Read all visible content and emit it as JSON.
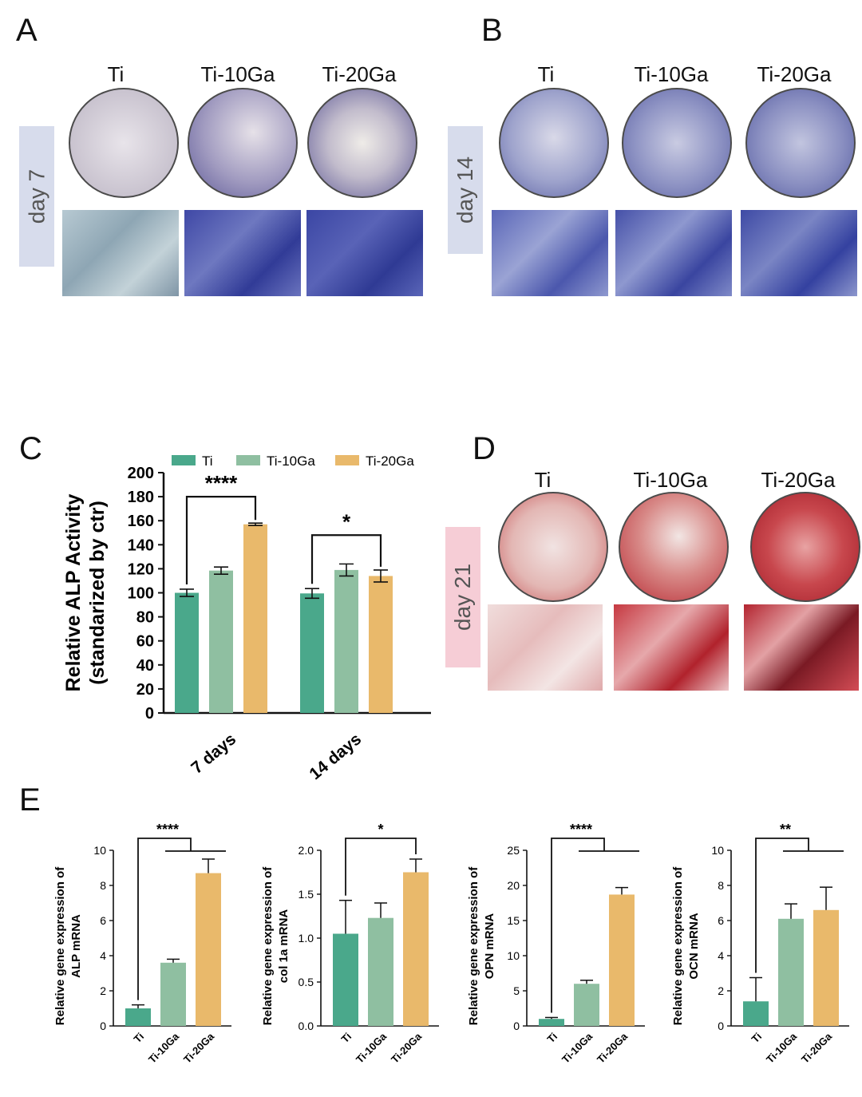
{
  "panels": {
    "A": {
      "letter": "A",
      "day": "day 7",
      "groups": [
        "Ti",
        "Ti-10Ga",
        "Ti-20Ga"
      ],
      "stain_color": "#4a4fa0"
    },
    "B": {
      "letter": "B",
      "day": "day 14",
      "groups": [
        "Ti",
        "Ti-10Ga",
        "Ti-20Ga"
      ],
      "stain_color": "#4a4fa0"
    },
    "C": {
      "letter": "C"
    },
    "D": {
      "letter": "D",
      "day": "day 21",
      "groups": [
        "Ti",
        "Ti-10Ga",
        "Ti-20Ga"
      ],
      "stain_color": "#c4323a"
    },
    "E": {
      "letter": "E"
    }
  },
  "colors": {
    "Ti": "#4aa88b",
    "Ti-10Ga": "#8fbfa1",
    "Ti-20Ga": "#e9b96b",
    "day_tag_blue": "#d7dcec",
    "day_tag_red": "#f6cdd6"
  },
  "chart_data": [
    {
      "id": "C",
      "type": "bar",
      "categories": [
        "7 days",
        "14 days"
      ],
      "series": [
        {
          "name": "Ti",
          "values": [
            100,
            99.5
          ],
          "errors": [
            3,
            4
          ]
        },
        {
          "name": "Ti-10Ga",
          "values": [
            118.5,
            119
          ],
          "errors": [
            3,
            5
          ]
        },
        {
          "name": "Ti-20Ga",
          "values": [
            157,
            114
          ],
          "errors": [
            1,
            5
          ]
        }
      ],
      "ylabel_line1": "Relative ALP Activity",
      "ylabel_line2": "(standarized by ctr)",
      "ylim": [
        0,
        200
      ],
      "yticks": [
        "0",
        "20",
        "40",
        "60",
        "80",
        "100",
        "120",
        "140",
        "160",
        "180",
        "200"
      ],
      "legend": [
        "Ti",
        "Ti-10Ga",
        "Ti-20Ga"
      ],
      "legend_position": "top",
      "significance": [
        "****",
        "*"
      ]
    },
    {
      "id": "E1",
      "type": "bar",
      "categories": [
        "Ti",
        "Ti-10Ga",
        "Ti-20Ga"
      ],
      "values": [
        1.0,
        3.6,
        8.7
      ],
      "errors": [
        0.2,
        0.2,
        0.8
      ],
      "ylabel_line1": "Relative gene expression of",
      "ylabel_line2": "ALP  mRNA",
      "ylim": [
        0,
        10
      ],
      "yticks": [
        "0",
        "2",
        "4",
        "6",
        "8",
        "10"
      ],
      "significance": "****"
    },
    {
      "id": "E2",
      "type": "bar",
      "categories": [
        "Ti",
        "Ti-10Ga",
        "Ti-20Ga"
      ],
      "values": [
        1.05,
        1.23,
        1.75
      ],
      "errors": [
        0.38,
        0.17,
        0.15
      ],
      "ylabel_line1": "Relative gene expression of",
      "ylabel_line2": "col 1a mRNA",
      "ylim": [
        0,
        2.0
      ],
      "yticks": [
        "0.0",
        "0.5",
        "1.0",
        "1.5",
        "2.0"
      ],
      "significance": "*"
    },
    {
      "id": "E3",
      "type": "bar",
      "categories": [
        "Ti",
        "Ti-10Ga",
        "Ti-20Ga"
      ],
      "values": [
        1.0,
        6.0,
        18.7
      ],
      "errors": [
        0.2,
        0.5,
        1.0
      ],
      "ylabel_line1": "Relative gene expression of",
      "ylabel_line2": "OPN  mRNA",
      "ylim": [
        0,
        25
      ],
      "yticks": [
        "0",
        "5",
        "10",
        "15",
        "20",
        "25"
      ],
      "significance": "****"
    },
    {
      "id": "E4",
      "type": "bar",
      "categories": [
        "Ti",
        "Ti-10Ga",
        "Ti-20Ga"
      ],
      "values": [
        1.4,
        6.1,
        6.6
      ],
      "errors": [
        1.35,
        0.85,
        1.3
      ],
      "ylabel_line1": "Relative gene expression of",
      "ylabel_line2": "OCN  mRNA",
      "ylim": [
        0,
        10
      ],
      "yticks": [
        "0",
        "2",
        "4",
        "6",
        "8",
        "10"
      ],
      "significance": "**"
    }
  ]
}
